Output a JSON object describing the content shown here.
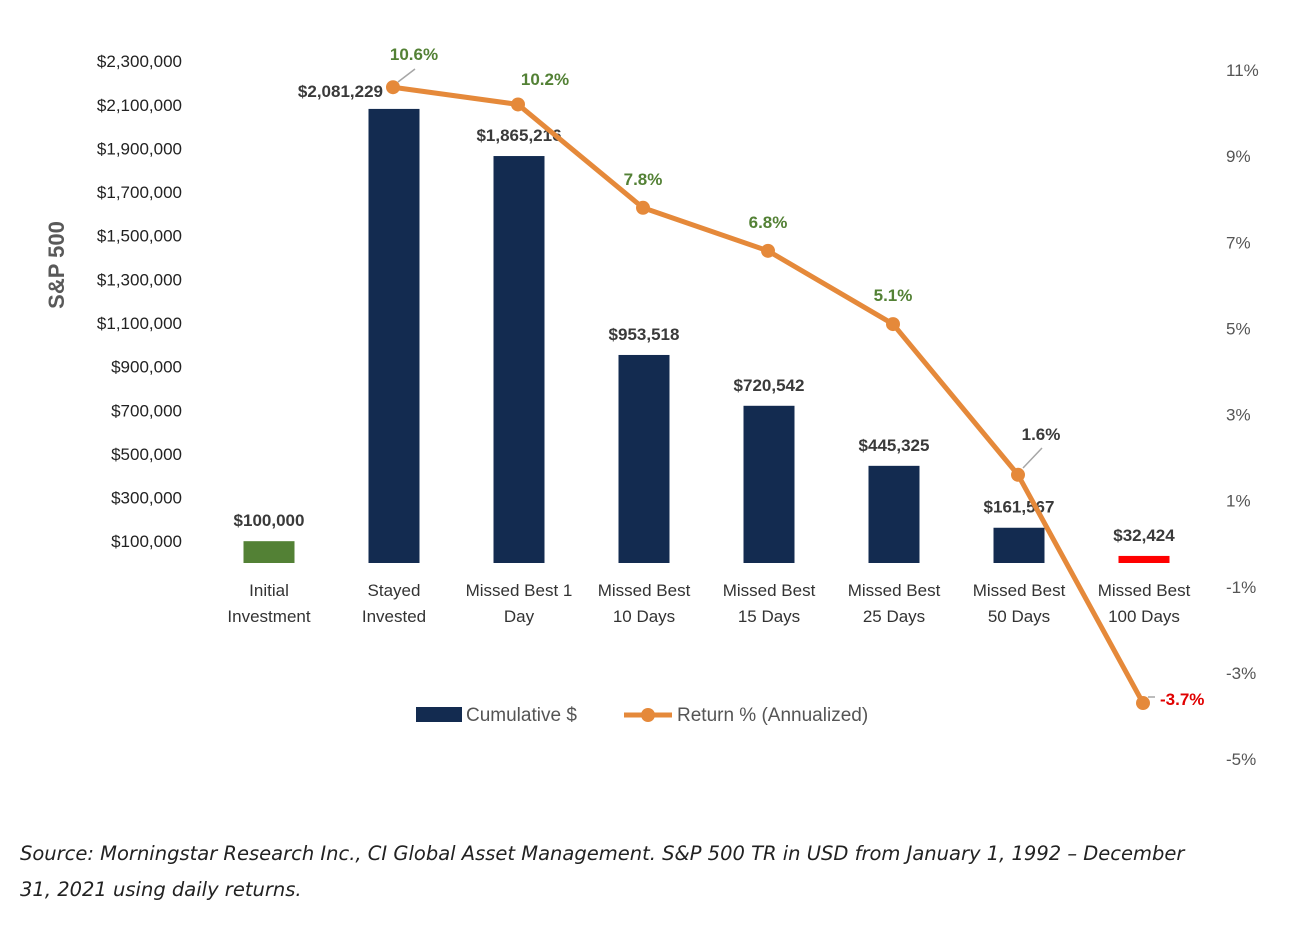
{
  "chart_data": {
    "type": "bar",
    "title": "",
    "ylabel": "S&P 500",
    "xlabel": "",
    "categories": [
      [
        "Initial",
        "Investment"
      ],
      [
        "Stayed",
        "Invested"
      ],
      [
        "Missed Best 1",
        "Day"
      ],
      [
        "Missed Best",
        "10 Days"
      ],
      [
        "Missed Best",
        "15 Days"
      ],
      [
        "Missed Best",
        "25 Days"
      ],
      [
        "Missed Best",
        "50 Days"
      ],
      [
        "Missed Best",
        "100 Days"
      ]
    ],
    "series": [
      {
        "name": "Cumulative $",
        "type": "bar",
        "axis": "left",
        "values": [
          100000,
          2081229,
          1865216,
          953518,
          720542,
          445325,
          161567,
          32424
        ],
        "labels": [
          "$100,000",
          "$2,081,229",
          "$1,865,216",
          "$953,518",
          "$720,542",
          "$445,325",
          "$161,567",
          "$32,424"
        ],
        "colors": [
          "#538135",
          "#132b50",
          "#132b50",
          "#132b50",
          "#132b50",
          "#132b50",
          "#132b50",
          "#ff0000"
        ]
      },
      {
        "name": "Return % (Annualized)",
        "type": "line",
        "axis": "right",
        "values": [
          null,
          10.6,
          10.2,
          7.8,
          6.8,
          5.1,
          1.6,
          -3.7
        ],
        "labels": [
          null,
          "10.6%",
          "10.2%",
          "7.8%",
          "6.8%",
          "5.1%",
          "1.6%",
          "-3.7%"
        ],
        "label_colors": [
          null,
          "#538135",
          "#538135",
          "#538135",
          "#538135",
          "#538135",
          "#3a3a3a",
          "#e00000"
        ],
        "color": "#e5893a"
      }
    ],
    "left_axis": {
      "ylim": [
        0,
        2300000
      ],
      "ticks": [
        100000,
        300000,
        500000,
        700000,
        900000,
        1100000,
        1300000,
        1500000,
        1700000,
        1900000,
        2100000,
        2300000
      ],
      "tick_labels": [
        "$100,000",
        "$300,000",
        "$500,000",
        "$700,000",
        "$900,000",
        "$1,100,000",
        "$1,300,000",
        "$1,500,000",
        "$1,700,000",
        "$1,900,000",
        "$2,100,000",
        "$2,300,000"
      ]
    },
    "right_axis": {
      "ylim": [
        -5,
        11
      ],
      "ticks": [
        11,
        9,
        7,
        5,
        3,
        1,
        -1,
        -3,
        -5
      ],
      "tick_labels": [
        "11%",
        "9%",
        "7%",
        "5%",
        "3%",
        "1%",
        "-1%",
        "-3%",
        "-5%"
      ]
    },
    "grid": false,
    "legend": {
      "position": "bottom-center",
      "items": [
        {
          "label": "Cumulative $",
          "kind": "bar",
          "color": "#132b50"
        },
        {
          "label": "Return % (Annualized)",
          "kind": "line-marker",
          "color": "#e5893a"
        }
      ]
    }
  },
  "source_note": "Source: Morningstar Research Inc., CI Global Asset Management. S&P 500 TR in USD from January 1, 1992 – December 31, 2021 using daily returns."
}
